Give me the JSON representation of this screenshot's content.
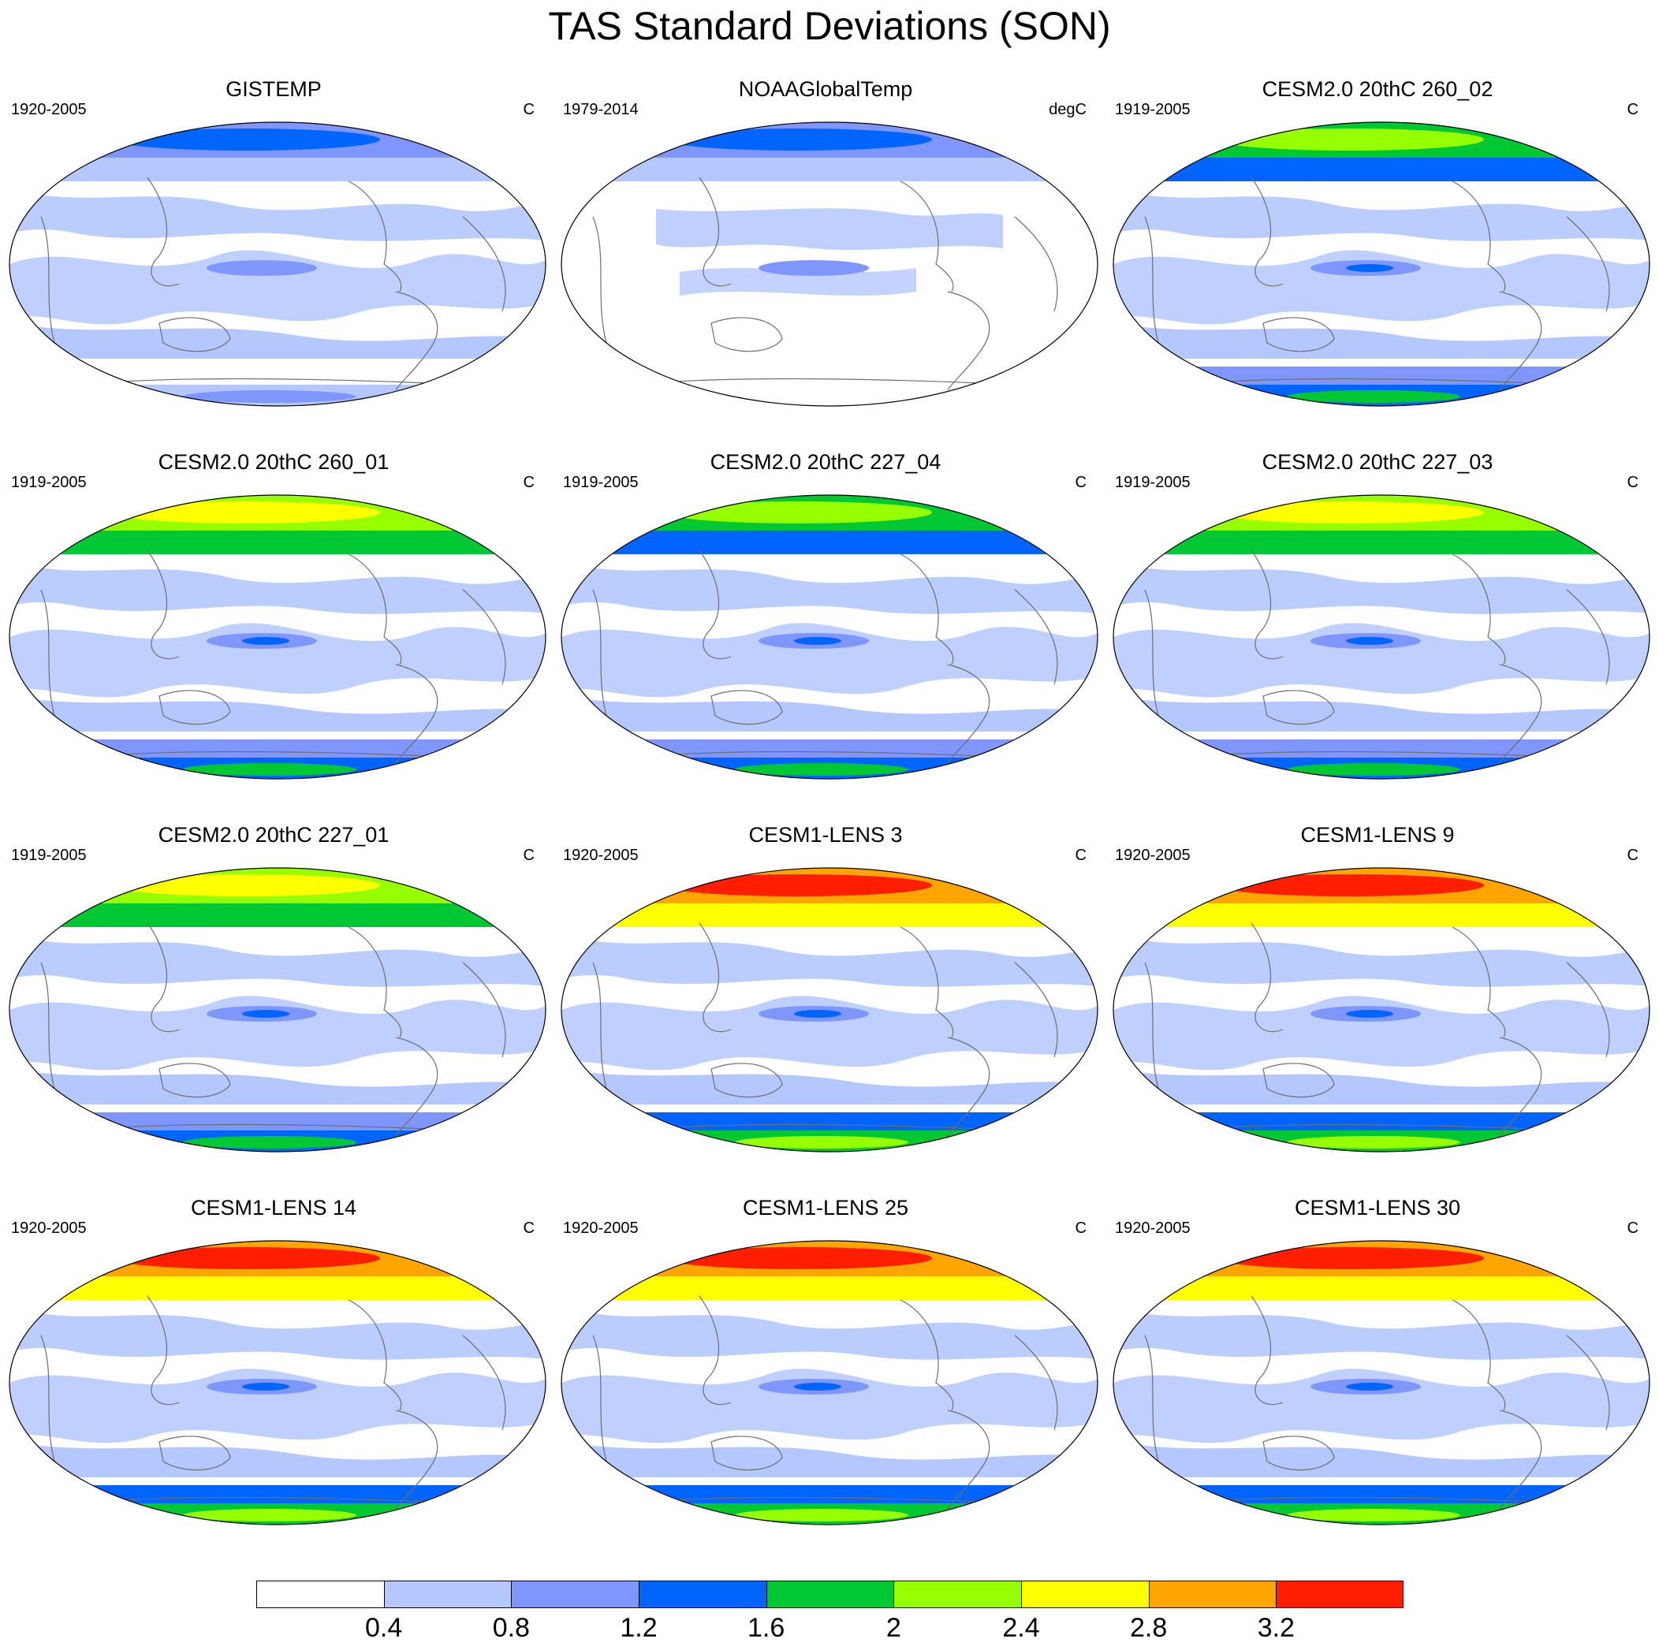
{
  "title": "TAS Standard Deviations (SON)",
  "colorbar": {
    "colors": [
      "#ffffff",
      "#b4c7ff",
      "#7f96ff",
      "#0064ff",
      "#00c832",
      "#96ff00",
      "#ffff00",
      "#ffa500",
      "#ff1e00"
    ],
    "labels": [
      "0.4",
      "0.8",
      "1.2",
      "1.6",
      "2",
      "2.4",
      "2.8",
      "3.2"
    ]
  },
  "panels": [
    {
      "title": "GISTEMP",
      "period": "1920-2005",
      "units": "C",
      "north_level": 3,
      "south_level": 2
    },
    {
      "title": "NOAAGlobalTemp",
      "period": "1979-2014",
      "units": "degC",
      "north_level": 3,
      "south_level": 0
    },
    {
      "title": "CESM2.0 20thC 260_02",
      "period": "1919-2005",
      "units": "C",
      "north_level": 5,
      "south_level": 4
    },
    {
      "title": "CESM2.0 20thC 260_01",
      "period": "1919-2005",
      "units": "C",
      "north_level": 6,
      "south_level": 4
    },
    {
      "title": "CESM2.0 20thC 227_04",
      "period": "1919-2005",
      "units": "C",
      "north_level": 5,
      "south_level": 4
    },
    {
      "title": "CESM2.0 20thC 227_03",
      "period": "1919-2005",
      "units": "C",
      "north_level": 6,
      "south_level": 4
    },
    {
      "title": "CESM2.0 20thC 227_01",
      "period": "1919-2005",
      "units": "C",
      "north_level": 6,
      "south_level": 4
    },
    {
      "title": "CESM1-LENS 3",
      "period": "1920-2005",
      "units": "C",
      "north_level": 8,
      "south_level": 5
    },
    {
      "title": "CESM1-LENS 9",
      "period": "1920-2005",
      "units": "C",
      "north_level": 8,
      "south_level": 5
    },
    {
      "title": "CESM1-LENS 14",
      "period": "1920-2005",
      "units": "C",
      "north_level": 8,
      "south_level": 5
    },
    {
      "title": "CESM1-LENS 25",
      "period": "1920-2005",
      "units": "C",
      "north_level": 8,
      "south_level": 5
    },
    {
      "title": "CESM1-LENS 30",
      "period": "1920-2005",
      "units": "C",
      "north_level": 8,
      "south_level": 5
    }
  ]
}
